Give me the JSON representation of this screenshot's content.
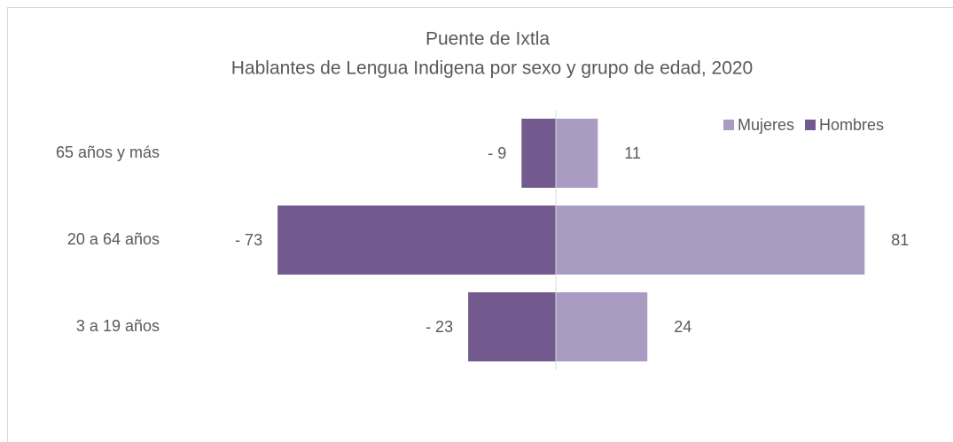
{
  "chart_data": {
    "type": "bar",
    "orientation": "horizontal",
    "title": "Puente de Ixtla",
    "subtitle": "Hablantes de Lengua Indigena por sexo y grupo de edad, 2020",
    "categories": [
      "65 años y más",
      "20 a 64 años",
      "3 a 19 años"
    ],
    "series": [
      {
        "name": "Mujeres",
        "color": "#a99bc1",
        "values": [
          11,
          81,
          24
        ]
      },
      {
        "name": "Hombres",
        "color": "#725a8f",
        "values": [
          -9,
          -73,
          -23
        ],
        "value_labels": [
          "- 9",
          "- 73",
          "- 23"
        ]
      }
    ],
    "xlim": [
      -100,
      100
    ],
    "legend": "top-right"
  }
}
